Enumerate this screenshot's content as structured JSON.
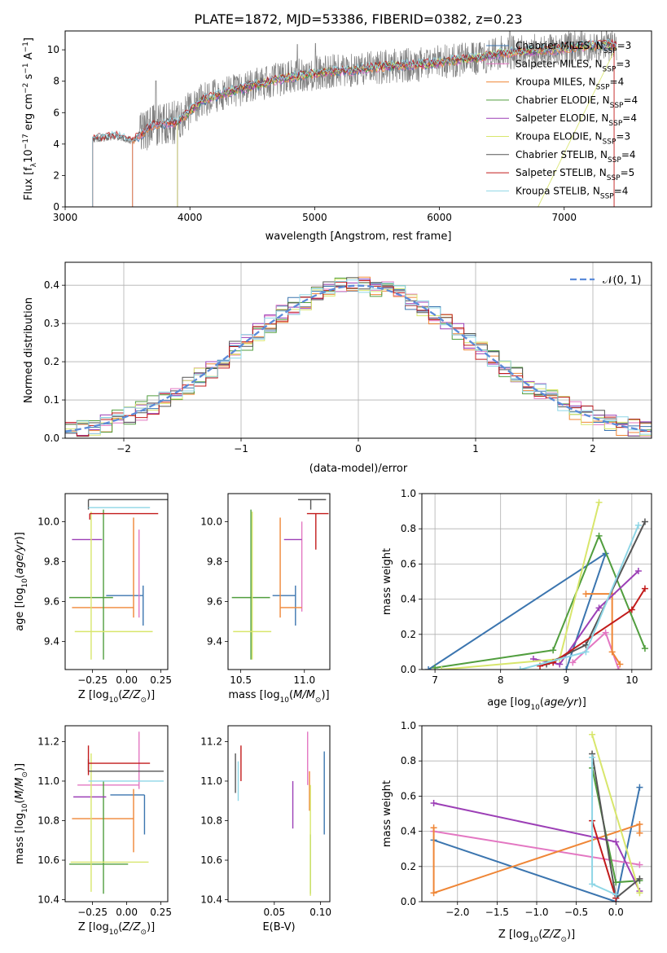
{
  "figure_title": "PLATE=1872, MJD=53386, FIBERID=0382, z=0.23",
  "colors": {
    "chabrier_miles": "#3b75af",
    "salpeter_miles": "#e377c2",
    "kroupa_miles": "#ef8636",
    "chabrier_elodie": "#519e3e",
    "salpeter_elodie": "#9c3fb6",
    "kroupa_elodie": "#d8e66c",
    "chabrier_stelib": "#555555",
    "salpeter_stelib": "#c21b1b",
    "kroupa_stelib": "#8ed6e6",
    "data": "#808080",
    "gaussian": "#5b8bd9"
  },
  "chart_data": [
    {
      "id": "spectrum",
      "type": "line",
      "xlabel": "wavelength [Angstrom, rest frame]",
      "ylabel": "Flux [f_λ10^-17 erg cm^-2 s^-1 A^-1]",
      "xlim": [
        3000,
        7700
      ],
      "ylim": [
        0,
        11.2
      ],
      "xticks": [
        "3000",
        "4000",
        "5000",
        "6000",
        "7000"
      ],
      "yticks": [
        "0",
        "2",
        "4",
        "6",
        "8",
        "10"
      ],
      "legend_position": "right",
      "legend": [
        {
          "label": "Chabrier MILES, N_SSP=3",
          "color_key": "chabrier_miles"
        },
        {
          "label": "Salpeter MILES, N_SSP=3",
          "color_key": "salpeter_miles"
        },
        {
          "label": "Kroupa MILES, N_SSP=4",
          "color_key": "kroupa_miles"
        },
        {
          "label": "Chabrier ELODIE, N_SSP=4",
          "color_key": "chabrier_elodie"
        },
        {
          "label": "Salpeter ELODIE, N_SSP=4",
          "color_key": "salpeter_elodie"
        },
        {
          "label": "Kroupa ELODIE, N_SSP=3",
          "color_key": "kroupa_elodie"
        },
        {
          "label": "Chabrier STELIB, N_SSP=4",
          "color_key": "chabrier_stelib"
        },
        {
          "label": "Salpeter STELIB, N_SSP=5",
          "color_key": "salpeter_stelib"
        },
        {
          "label": "Kroupa STELIB, N_SSP=4",
          "color_key": "kroupa_stelib"
        }
      ],
      "continuum_wavelength": [
        3220,
        3400,
        3540,
        3700,
        3900,
        4000,
        4100,
        4300,
        4500,
        4700,
        4900,
        5100,
        5300,
        5500,
        5700,
        5900,
        6100,
        6300,
        6500,
        6700,
        6900,
        7100,
        7300,
        7400
      ],
      "continuum_flux": [
        4.3,
        4.5,
        4.2,
        5.2,
        5.4,
        6.1,
        6.8,
        7.3,
        7.7,
        8.1,
        8.4,
        8.6,
        8.7,
        8.9,
        9.0,
        9.1,
        9.3,
        9.5,
        9.8,
        9.9,
        10.0,
        10.2,
        10.3,
        10.3
      ],
      "model_start_wavelength": {
        "MILES": 3540,
        "ELODIE": 3900,
        "STELIB": 3220
      }
    },
    {
      "id": "residuals",
      "type": "line",
      "xlabel": "(data-model)/error",
      "ylabel": "Normed distribution",
      "xlim": [
        -2.5,
        2.5
      ],
      "ylim": [
        0,
        0.46
      ],
      "xticks": [
        "−2",
        "−1",
        "0",
        "1",
        "2"
      ],
      "yticks": [
        "0.0",
        "0.1",
        "0.2",
        "0.3",
        "0.4"
      ],
      "grid": true,
      "legend_label": "N(0,1)",
      "legend_position": "top-right",
      "bin_width": 0.1
    },
    {
      "id": "age_vs_Z",
      "type": "scatter",
      "xlabel": "Z [log10(Z/Z_sun)]",
      "ylabel": "age [log10(age/yr)]",
      "xlim": [
        -0.45,
        0.3
      ],
      "ylim": [
        9.26,
        10.14
      ],
      "xticks": [
        "−0.25",
        "0.00",
        "0.25"
      ],
      "yticks": [
        "9.4",
        "9.6",
        "9.8",
        "10.0"
      ],
      "points": [
        {
          "model": "chabrier_miles",
          "x": 0.12,
          "y": 9.63,
          "xerr": [
            0.27,
            0.0
          ],
          "yerr": [
            0.15,
            0.05
          ]
        },
        {
          "model": "salpeter_miles",
          "x": 0.09,
          "y": 9.56,
          "xerr": [
            0.0,
            0.0
          ],
          "yerr": [
            0.04,
            0.4
          ]
        },
        {
          "model": "kroupa_miles",
          "x": 0.05,
          "y": 9.57,
          "xerr": [
            0.45,
            0.0
          ],
          "yerr": [
            0.05,
            0.45
          ]
        },
        {
          "model": "chabrier_elodie",
          "x": -0.17,
          "y": 9.62,
          "xerr": [
            0.25,
            0.07
          ],
          "yerr": [
            0.31,
            0.44
          ]
        },
        {
          "model": "salpeter_elodie",
          "x": -0.28,
          "y": 9.91,
          "xerr": [
            0.12,
            0.1
          ],
          "yerr": [
            0.0,
            0.0
          ]
        },
        {
          "model": "kroupa_elodie",
          "x": -0.26,
          "y": 9.45,
          "xerr": [
            0.12,
            0.45
          ],
          "yerr": [
            0.14,
            0.6
          ]
        },
        {
          "model": "chabrier_stelib",
          "x": -0.28,
          "y": 10.11,
          "xerr": [
            0.0,
            0.6
          ],
          "yerr": [
            0.05,
            0.0
          ]
        },
        {
          "model": "salpeter_stelib",
          "x": -0.27,
          "y": 10.04,
          "xerr": [
            0.0,
            0.5
          ],
          "yerr": [
            0.03,
            0.0
          ]
        },
        {
          "model": "kroupa_stelib",
          "x": -0.28,
          "y": 10.07,
          "xerr": [
            0.0,
            0.45
          ],
          "yerr": [
            0.0,
            0.0
          ]
        }
      ]
    },
    {
      "id": "age_vs_mass",
      "type": "scatter",
      "xlabel": "mass [log10(M/M_sun)]",
      "ylabel": "",
      "xlim": [
        10.4,
        11.2
      ],
      "ylim": [
        9.26,
        10.14
      ],
      "xticks": [
        "10.5",
        "11.0"
      ],
      "yticks": [
        "9.4",
        "9.6",
        "9.8",
        "10.0"
      ],
      "points": [
        {
          "model": "chabrier_miles",
          "x": 10.93,
          "y": 9.63,
          "xerr": [
            0.18,
            0.0
          ],
          "yerr": [
            0.15,
            0.05
          ]
        },
        {
          "model": "salpeter_miles",
          "x": 10.98,
          "y": 9.6,
          "xerr": [
            0.0,
            0.0
          ],
          "yerr": [
            0.05,
            0.4
          ]
        },
        {
          "model": "kroupa_miles",
          "x": 10.81,
          "y": 9.57,
          "xerr": [
            0.0,
            0.17
          ],
          "yerr": [
            0.05,
            0.45
          ]
        },
        {
          "model": "chabrier_elodie",
          "x": 10.58,
          "y": 9.62,
          "xerr": [
            0.15,
            0.15
          ],
          "yerr": [
            0.31,
            0.44
          ]
        },
        {
          "model": "salpeter_elodie",
          "x": 10.93,
          "y": 9.91,
          "xerr": [
            0.09,
            0.05
          ],
          "yerr": [
            0.0,
            0.0
          ]
        },
        {
          "model": "kroupa_elodie",
          "x": 10.59,
          "y": 9.45,
          "xerr": [
            0.15,
            0.15
          ],
          "yerr": [
            0.14,
            0.6
          ]
        },
        {
          "model": "chabrier_stelib",
          "x": 11.05,
          "y": 10.11,
          "xerr": [
            0.1,
            0.12
          ],
          "yerr": [
            0.05,
            0.0
          ]
        },
        {
          "model": "salpeter_stelib",
          "x": 11.09,
          "y": 10.04,
          "xerr": [
            0.07,
            0.1
          ],
          "yerr": [
            0.18,
            0.0
          ]
        },
        {
          "model": "kroupa_stelib",
          "x": 10.98,
          "y": 10.07,
          "xerr": [
            0.0,
            0.0
          ],
          "yerr": [
            0.0,
            0.0
          ]
        }
      ]
    },
    {
      "id": "weight_vs_age",
      "type": "line",
      "xlabel": "age [log10(age/yr)]",
      "ylabel": "mass weight",
      "xlim": [
        6.8,
        10.3
      ],
      "ylim": [
        0,
        1.0
      ],
      "xticks": [
        "7",
        "8",
        "9",
        "10"
      ],
      "yticks": [
        "0.0",
        "0.2",
        "0.4",
        "0.6",
        "0.8",
        "1.0"
      ],
      "grid": true,
      "series": [
        {
          "model": "chabrier_miles",
          "x": [
            6.9,
            9.6,
            9.0
          ],
          "y": [
            0.0,
            0.66,
            0.0
          ]
        },
        {
          "model": "salpeter_miles",
          "x": [
            9.1,
            9.6,
            9.8
          ],
          "y": [
            0.04,
            0.21,
            0.0
          ]
        },
        {
          "model": "kroupa_miles",
          "x": [
            9.3,
            9.7,
            9.7,
            9.82
          ],
          "y": [
            0.43,
            0.43,
            0.1,
            0.03
          ]
        },
        {
          "model": "chabrier_elodie",
          "x": [
            7.0,
            8.8,
            9.5,
            10.2
          ],
          "y": [
            0.01,
            0.11,
            0.76,
            0.12
          ]
        },
        {
          "model": "salpeter_elodie",
          "x": [
            8.5,
            8.9,
            9.5,
            10.1
          ],
          "y": [
            0.06,
            0.03,
            0.35,
            0.56
          ]
        },
        {
          "model": "kroupa_elodie",
          "x": [
            7.1,
            8.9,
            9.5
          ],
          "y": [
            0.0,
            0.06,
            0.95
          ]
        },
        {
          "model": "chabrier_stelib",
          "x": [
            8.7,
            9.3,
            10.2
          ],
          "y": [
            0.03,
            0.14,
            0.84
          ]
        },
        {
          "model": "salpeter_stelib",
          "x": [
            8.6,
            8.8,
            10.0,
            10.2
          ],
          "y": [
            0.02,
            0.04,
            0.34,
            0.46
          ]
        },
        {
          "model": "kroupa_stelib",
          "x": [
            8.3,
            9.3,
            10.1
          ],
          "y": [
            0.0,
            0.1,
            0.82
          ]
        }
      ]
    },
    {
      "id": "mass_vs_Z",
      "type": "scatter",
      "xlabel": "Z [log10(Z/Z_sun)]",
      "ylabel": "mass [log10(M/M_sun)]",
      "xlim": [
        -0.45,
        0.3
      ],
      "ylim": [
        10.39,
        11.28
      ],
      "xticks": [
        "−0.25",
        "0.00",
        "0.25"
      ],
      "yticks": [
        "10.4",
        "10.6",
        "10.8",
        "11.0",
        "11.2"
      ],
      "points": [
        {
          "model": "chabrier_miles",
          "x": 0.13,
          "y": 10.93,
          "xerr": [
            0.25,
            0.0
          ],
          "yerr": [
            0.2,
            0.0
          ]
        },
        {
          "model": "salpeter_miles",
          "x": 0.09,
          "y": 10.98,
          "xerr": [
            0.45,
            0.0
          ],
          "yerr": [
            0.02,
            0.27
          ]
        },
        {
          "model": "kroupa_miles",
          "x": 0.05,
          "y": 10.81,
          "xerr": [
            0.45,
            0.0
          ],
          "yerr": [
            0.17,
            0.15
          ]
        },
        {
          "model": "chabrier_elodie",
          "x": -0.17,
          "y": 10.58,
          "xerr": [
            0.25,
            0.18
          ],
          "yerr": [
            0.15,
            0.42
          ]
        },
        {
          "model": "salpeter_elodie",
          "x": -0.27,
          "y": 10.92,
          "xerr": [
            0.12,
            0.12
          ],
          "yerr": [
            0.0,
            0.0
          ]
        },
        {
          "model": "kroupa_elodie",
          "x": -0.26,
          "y": 10.59,
          "xerr": [
            0.15,
            0.42
          ],
          "yerr": [
            0.15,
            0.55
          ]
        },
        {
          "model": "chabrier_stelib",
          "x": -0.28,
          "y": 11.05,
          "xerr": [
            0.0,
            0.55
          ],
          "yerr": [
            0.0,
            0.06
          ]
        },
        {
          "model": "salpeter_stelib",
          "x": -0.28,
          "y": 11.09,
          "xerr": [
            0.0,
            0.45
          ],
          "yerr": [
            0.06,
            0.09
          ]
        },
        {
          "model": "kroupa_stelib",
          "x": -0.28,
          "y": 11.0,
          "xerr": [
            0.0,
            0.55
          ],
          "yerr": [
            0.0,
            0.0
          ]
        }
      ]
    },
    {
      "id": "mass_vs_ebv",
      "type": "scatter",
      "xlabel": "E(B-V)",
      "ylabel": "",
      "xlim": [
        0.0,
        0.11
      ],
      "ylim": [
        10.39,
        11.28
      ],
      "xticks": [
        "0.05",
        "0.10"
      ],
      "yticks": [
        "10.4",
        "10.6",
        "10.8",
        "11.0",
        "11.2"
      ],
      "points": [
        {
          "model": "chabrier_miles",
          "x": 0.104,
          "y": 10.93,
          "xerr": [
            0.0,
            0.0
          ],
          "yerr": [
            0.2,
            0.22
          ]
        },
        {
          "model": "salpeter_miles",
          "x": 0.086,
          "y": 10.98,
          "xerr": [
            0.0,
            0.0
          ],
          "yerr": [
            0.0,
            0.27
          ]
        },
        {
          "model": "kroupa_miles",
          "x": 0.088,
          "y": 10.95,
          "xerr": [
            0.0,
            0.0
          ],
          "yerr": [
            0.1,
            0.1
          ]
        },
        {
          "model": "chabrier_elodie",
          "x": 0.089,
          "y": 10.58,
          "xerr": [
            0.0,
            0.0
          ],
          "yerr": [
            0.15,
            0.15
          ]
        },
        {
          "model": "salpeter_elodie",
          "x": 0.07,
          "y": 10.88,
          "xerr": [
            0.0,
            0.0
          ],
          "yerr": [
            0.12,
            0.12
          ]
        },
        {
          "model": "kroupa_elodie",
          "x": 0.089,
          "y": 10.7,
          "xerr": [
            0.0,
            0.0
          ],
          "yerr": [
            0.28,
            0.28
          ]
        },
        {
          "model": "chabrier_stelib",
          "x": 0.008,
          "y": 11.04,
          "xerr": [
            0.0,
            0.0
          ],
          "yerr": [
            0.1,
            0.1
          ]
        },
        {
          "model": "salpeter_stelib",
          "x": 0.014,
          "y": 11.09,
          "xerr": [
            0.0,
            0.0
          ],
          "yerr": [
            0.09,
            0.09
          ]
        },
        {
          "model": "kroupa_stelib",
          "x": 0.011,
          "y": 11.0,
          "xerr": [
            0.0,
            0.0
          ],
          "yerr": [
            0.1,
            0.1
          ]
        }
      ]
    },
    {
      "id": "weight_vs_Z",
      "type": "line",
      "xlabel": "Z [log10(Z/Z_sun)]",
      "ylabel": "mass weight",
      "xlim": [
        -2.45,
        0.45
      ],
      "ylim": [
        0,
        1.0
      ],
      "xticks": [
        "−2.0",
        "−1.5",
        "−1.0",
        "−0.5",
        "0.0"
      ],
      "yticks": [
        "0.0",
        "0.2",
        "0.4",
        "0.6",
        "0.8",
        "1.0"
      ],
      "grid": true,
      "series": [
        {
          "model": "chabrier_miles",
          "x": [
            -2.3,
            0.0,
            0.3
          ],
          "y": [
            0.35,
            0.0,
            0.65
          ]
        },
        {
          "model": "salpeter_miles",
          "x": [
            -2.3,
            0.3
          ],
          "y": [
            0.4,
            0.21
          ]
        },
        {
          "model": "kroupa_miles",
          "x": [
            -2.3,
            -2.3,
            0.3,
            0.3
          ],
          "y": [
            0.42,
            0.05,
            0.44,
            0.39
          ]
        },
        {
          "model": "chabrier_elodie",
          "x": [
            -0.3,
            0.0,
            0.3
          ],
          "y": [
            0.76,
            0.11,
            0.12
          ]
        },
        {
          "model": "salpeter_elodie",
          "x": [
            -2.3,
            0.0,
            0.3
          ],
          "y": [
            0.56,
            0.34,
            0.06
          ]
        },
        {
          "model": "kroupa_elodie",
          "x": [
            -0.3,
            0.3
          ],
          "y": [
            0.95,
            0.05
          ]
        },
        {
          "model": "chabrier_stelib",
          "x": [
            -0.3,
            0.0,
            0.3
          ],
          "y": [
            0.84,
            0.02,
            0.13
          ]
        },
        {
          "model": "salpeter_stelib",
          "x": [
            -0.3,
            0.0
          ],
          "y": [
            0.46,
            0.02
          ]
        },
        {
          "model": "kroupa_stelib",
          "x": [
            -0.3,
            -0.3,
            0.0
          ],
          "y": [
            0.82,
            0.1,
            0.04
          ]
        }
      ]
    }
  ]
}
